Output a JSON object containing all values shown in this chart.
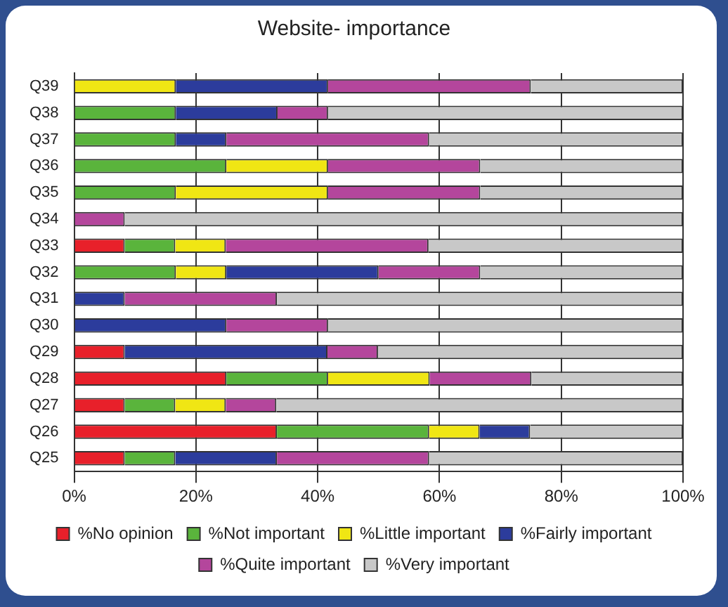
{
  "chart_data": {
    "type": "bar",
    "orientation": "horizontal",
    "stacked": true,
    "title": "Website- importance",
    "categories": [
      "Q39",
      "Q38",
      "Q37",
      "Q36",
      "Q35",
      "Q34",
      "Q33",
      "Q32",
      "Q31",
      "Q30",
      "Q29",
      "Q28",
      "Q27",
      "Q26",
      "Q25"
    ],
    "series": [
      {
        "name": "%No opinion",
        "color": "#e8202a",
        "values": [
          0,
          0,
          0,
          0,
          0,
          0,
          8.3,
          0,
          0,
          0,
          8.3,
          25,
          8.3,
          33.3,
          8.3
        ]
      },
      {
        "name": "%Not important",
        "color": "#5ab43c",
        "values": [
          0,
          16.7,
          16.7,
          25,
          16.7,
          0,
          8.3,
          16.7,
          0,
          0,
          0,
          16.7,
          8.3,
          25,
          8.3
        ]
      },
      {
        "name": "%Little important",
        "color": "#f0e614",
        "values": [
          16.7,
          0,
          0,
          16.7,
          25,
          0,
          8.3,
          8.3,
          0,
          0,
          0,
          16.7,
          8.3,
          8.3,
          0
        ]
      },
      {
        "name": "%Fairly important",
        "color": "#2c3c9c",
        "values": [
          25,
          16.7,
          8.3,
          0,
          0,
          0,
          0,
          25,
          8.3,
          25,
          33.3,
          0,
          0,
          8.3,
          16.7
        ]
      },
      {
        "name": "%Quite important",
        "color": "#b4469c",
        "values": [
          33.3,
          8.3,
          33.3,
          25,
          25,
          8.3,
          33.3,
          16.7,
          25,
          16.7,
          8.3,
          16.7,
          8.3,
          0,
          25
        ]
      },
      {
        "name": "%Very important",
        "color": "#c8c8c8",
        "values": [
          25,
          58.3,
          41.7,
          33.3,
          33.3,
          91.7,
          41.8,
          33.3,
          66.7,
          58.3,
          50.1,
          24.9,
          66.8,
          25.1,
          41.7
        ]
      }
    ],
    "xlim": [
      0,
      100
    ],
    "xticks": [
      {
        "value": 0,
        "label": "0%"
      },
      {
        "value": 20,
        "label": "20%"
      },
      {
        "value": 40,
        "label": "40%"
      },
      {
        "value": 60,
        "label": "60%"
      },
      {
        "value": 80,
        "label": "80%"
      },
      {
        "value": 100,
        "label": "100%"
      }
    ],
    "grid": "x",
    "legend": "bottom"
  }
}
